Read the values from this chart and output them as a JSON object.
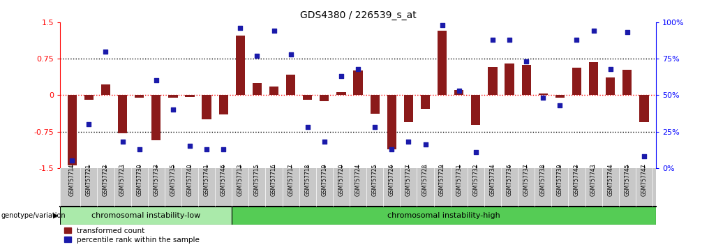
{
  "title": "GDS4380 / 226539_s_at",
  "samples": [
    "GSM757714",
    "GSM757721",
    "GSM757722",
    "GSM757723",
    "GSM757730",
    "GSM757733",
    "GSM757735",
    "GSM757740",
    "GSM757741",
    "GSM757746",
    "GSM757713",
    "GSM757715",
    "GSM757716",
    "GSM757717",
    "GSM757718",
    "GSM757719",
    "GSM757720",
    "GSM757724",
    "GSM757725",
    "GSM757726",
    "GSM757727",
    "GSM757728",
    "GSM757729",
    "GSM757731",
    "GSM757732",
    "GSM757734",
    "GSM757736",
    "GSM757737",
    "GSM757738",
    "GSM757739",
    "GSM757742",
    "GSM757743",
    "GSM757744",
    "GSM757745",
    "GSM757747"
  ],
  "bar_values": [
    -1.45,
    -0.1,
    0.22,
    -0.78,
    -0.05,
    -0.93,
    -0.05,
    -0.04,
    -0.5,
    -0.4,
    1.22,
    0.25,
    0.18,
    0.42,
    -0.1,
    -0.12,
    0.06,
    0.5,
    -0.38,
    -1.12,
    -0.55,
    -0.28,
    1.32,
    0.1,
    -0.62,
    0.58,
    0.65,
    0.62,
    0.03,
    -0.06,
    0.57,
    0.68,
    0.36,
    0.52,
    -0.55
  ],
  "dot_values": [
    5,
    30,
    80,
    18,
    13,
    60,
    40,
    15,
    13,
    13,
    96,
    77,
    94,
    78,
    28,
    18,
    63,
    68,
    28,
    13,
    18,
    16,
    98,
    53,
    11,
    88,
    88,
    73,
    48,
    43,
    88,
    94,
    68,
    93,
    8
  ],
  "group1_count": 10,
  "group1_label": "chromosomal instability-low",
  "group2_label": "chromosomal instability-high",
  "group1_color": "#aaeaaa",
  "group2_color": "#55cc55",
  "bar_color": "#8b1a1a",
  "dot_color": "#1a1aaa",
  "ylim_left": [
    -1.5,
    1.5
  ],
  "ylim_right": [
    0,
    100
  ],
  "yticks_left": [
    -1.5,
    -0.75,
    0,
    0.75,
    1.5
  ],
  "yticks_right": [
    0,
    25,
    50,
    75,
    100
  ],
  "ytick_labels_right": [
    "0%",
    "25%",
    "50%",
    "75%",
    "100%"
  ],
  "hlines_black": [
    0.75,
    -0.75
  ],
  "legend_bar": "transformed count",
  "legend_dot": "percentile rank within the sample",
  "genotype_label": "genotype/variation",
  "xtick_bg_color": "#c8c8c8",
  "background_color": "#ffffff"
}
